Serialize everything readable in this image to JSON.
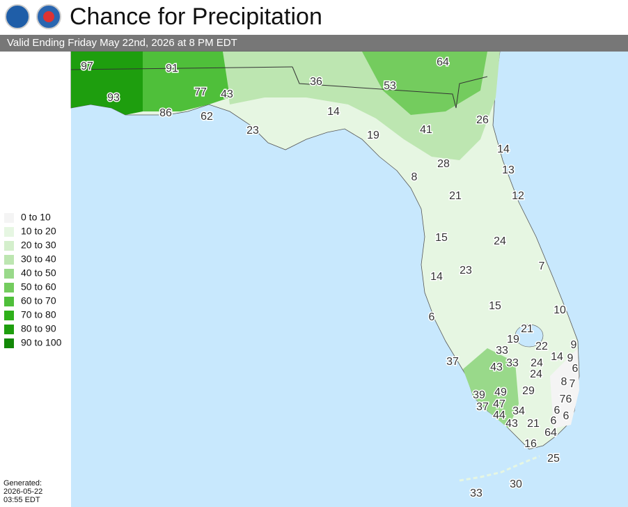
{
  "header": {
    "title": "Chance for Precipitation",
    "subtitle": "Valid Ending Friday May 22nd, 2026 at 8 PM EDT"
  },
  "legend": [
    {
      "label": "0 to 10",
      "color": "#f4f4f4"
    },
    {
      "label": "10 to 20",
      "color": "#e6f6e2"
    },
    {
      "label": "20 to 30",
      "color": "#d4efcc"
    },
    {
      "label": "30 to 40",
      "color": "#bde6b1"
    },
    {
      "label": "40 to 50",
      "color": "#99d98a"
    },
    {
      "label": "50 to 60",
      "color": "#74cc5e"
    },
    {
      "label": "60 to 70",
      "color": "#4fbf3a"
    },
    {
      "label": "70 to 80",
      "color": "#2eb01a"
    },
    {
      "label": "80 to 90",
      "color": "#1e9e0e"
    },
    {
      "label": "90 to 100",
      "color": "#128807"
    }
  ],
  "map_labels": [
    97,
    91,
    64,
    93,
    77,
    43,
    36,
    53,
    86,
    62,
    14,
    26,
    23,
    19,
    41,
    14,
    28,
    13,
    8,
    21,
    12,
    15,
    24,
    7,
    23,
    14,
    15,
    10,
    6,
    21,
    19,
    22,
    9,
    33,
    14,
    9,
    37,
    43,
    33,
    24,
    6,
    24,
    8,
    7,
    29,
    39,
    49,
    37,
    47,
    7,
    6,
    34,
    44,
    6,
    43,
    21,
    6,
    6,
    64,
    16,
    25,
    30,
    33
  ],
  "footer": {
    "generated": [
      "Generated:",
      "2026-05-22",
      "03:55 EDT"
    ]
  }
}
